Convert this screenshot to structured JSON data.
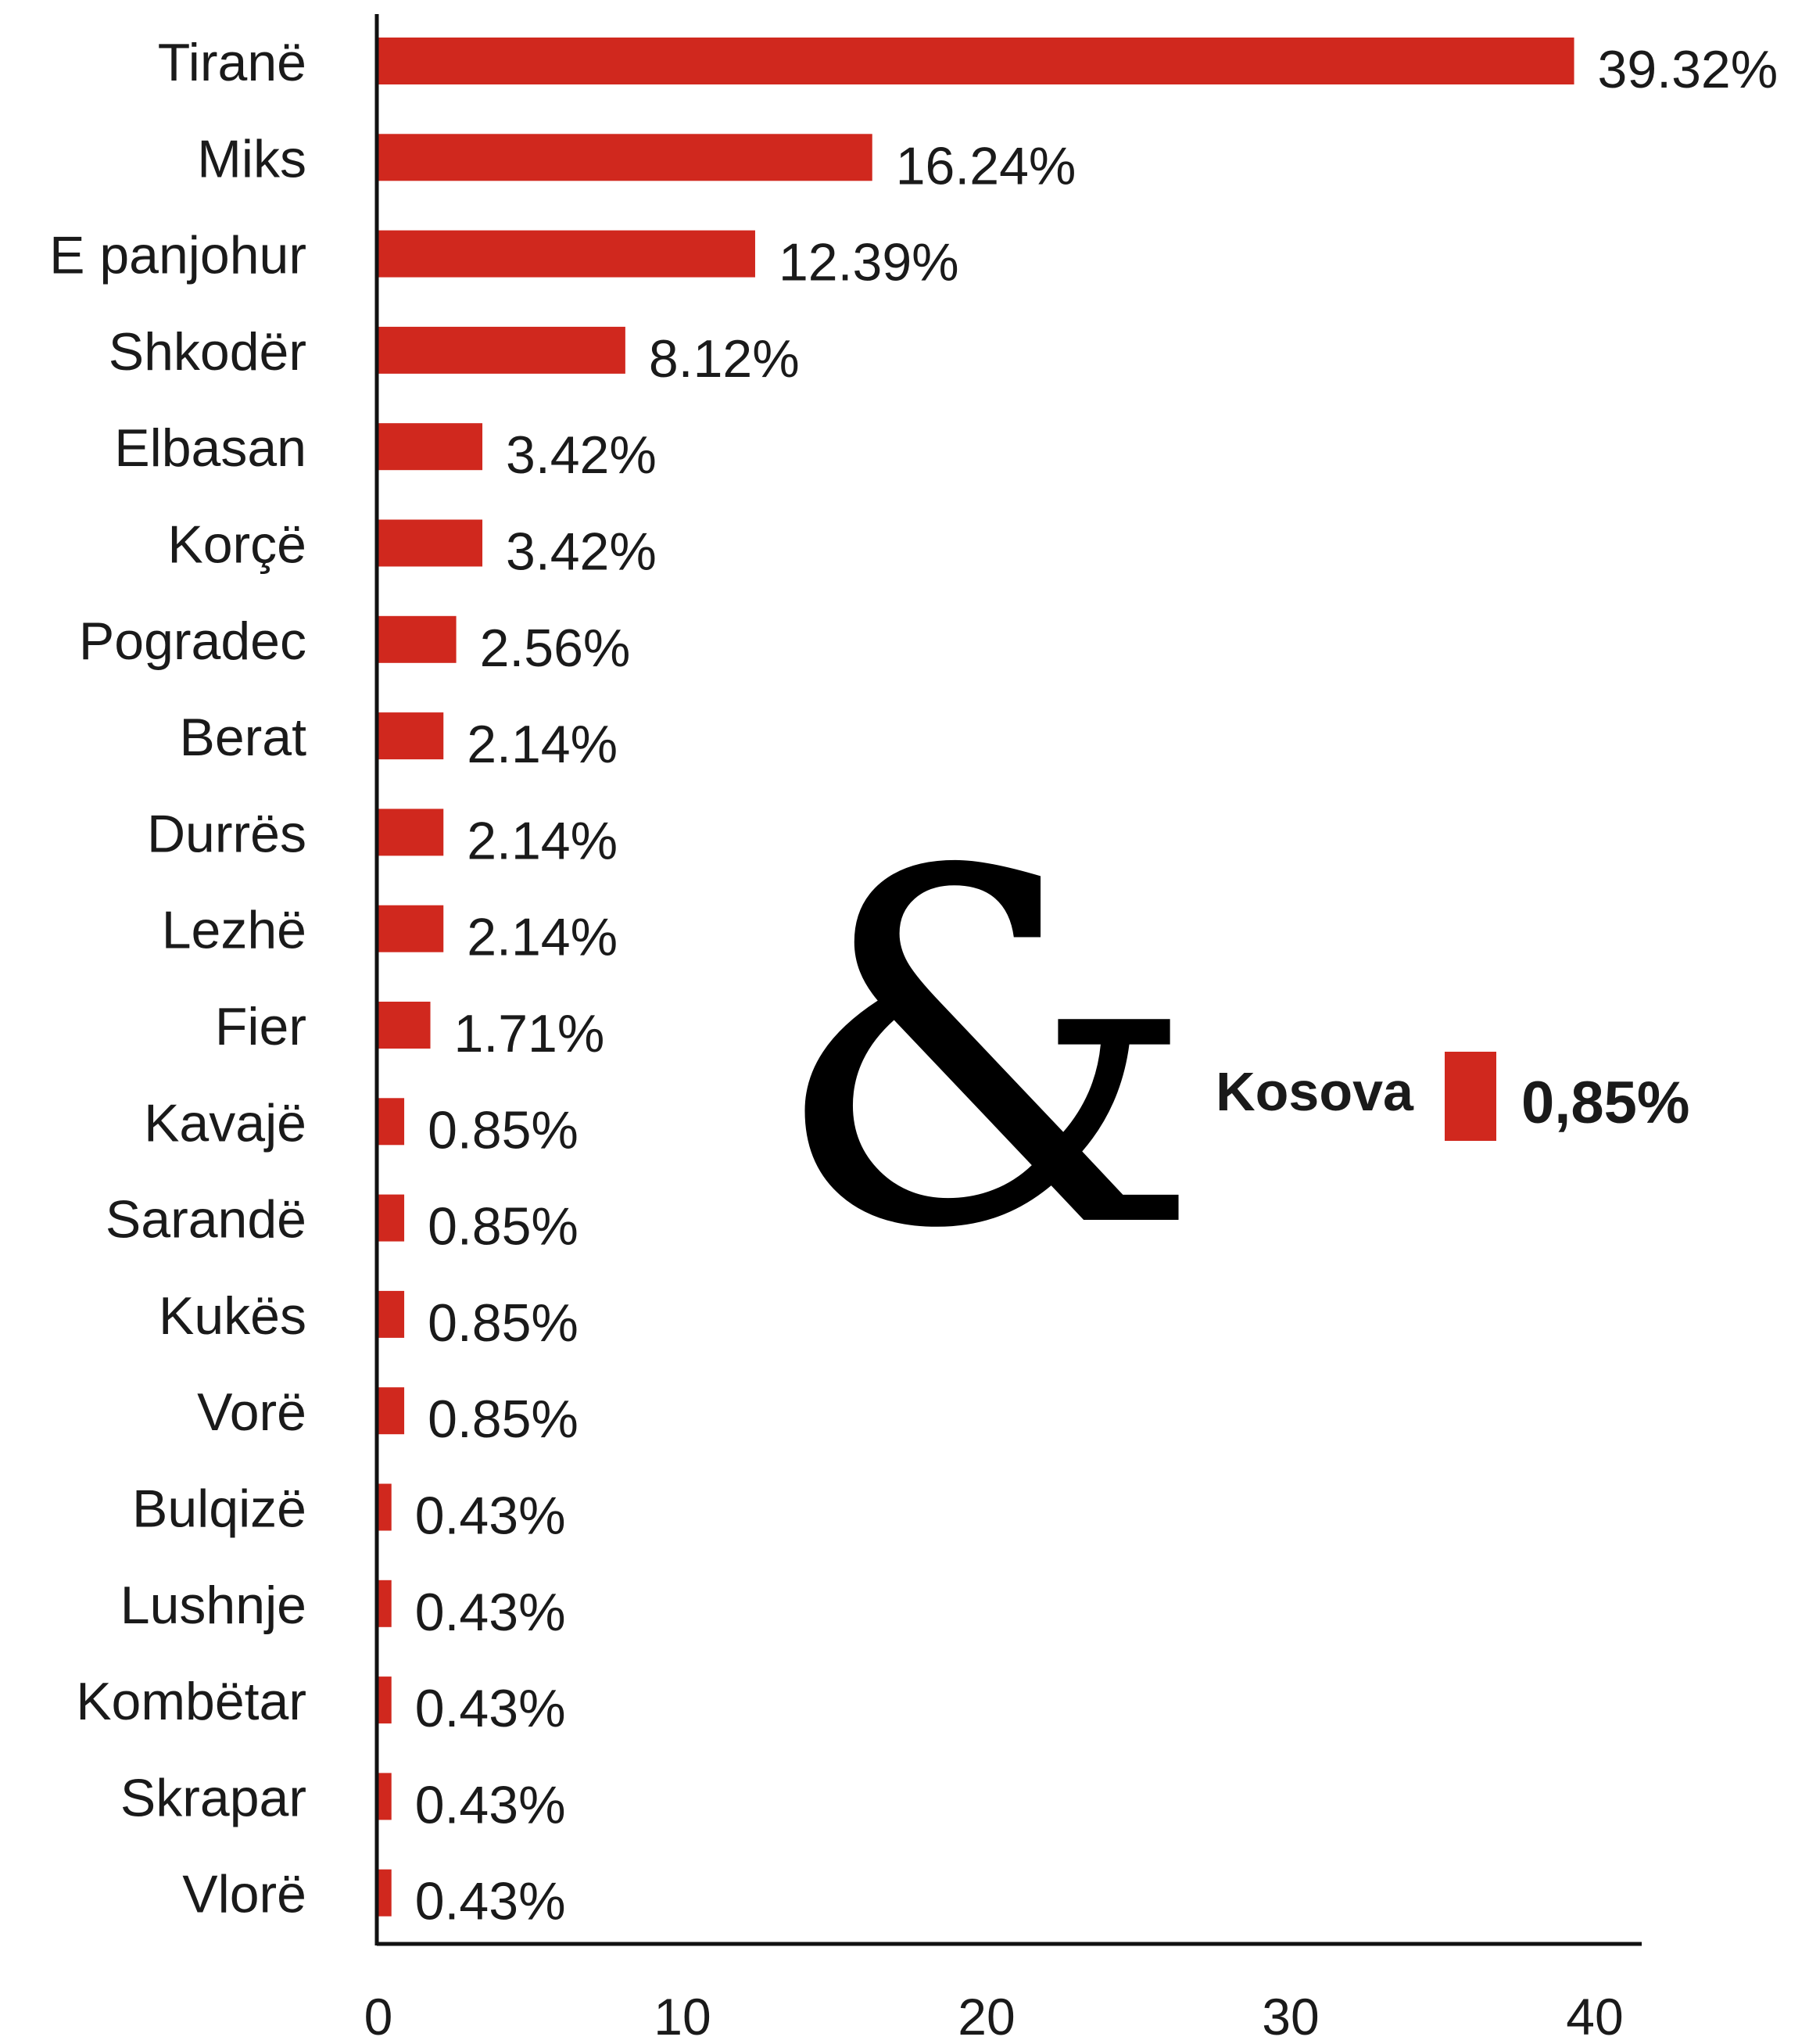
{
  "chart_data": {
    "type": "bar",
    "orientation": "horizontal",
    "categories": [
      "Tiranë",
      "Miks",
      "E panjohur",
      "Shkodër",
      "Elbasan",
      "Korçë",
      "Pogradec",
      "Berat",
      "Durrës",
      "Lezhë",
      "Fier",
      "Kavajë",
      "Sarandë",
      "Kukës",
      "Vorë",
      "Bulqizë",
      "Lushnje",
      "Kombëtar",
      "Skrapar",
      "Vlorë"
    ],
    "values": [
      39.32,
      16.24,
      12.39,
      8.12,
      3.42,
      3.42,
      2.56,
      2.14,
      2.14,
      2.14,
      1.71,
      0.85,
      0.85,
      0.85,
      0.85,
      0.43,
      0.43,
      0.43,
      0.43,
      0.43
    ],
    "value_labels": [
      "39.32%",
      "16.24%",
      "12.39%",
      "8.12%",
      "3.42%",
      "3.42%",
      "2.56%",
      "2.14%",
      "2.14%",
      "2.14%",
      "1.71%",
      "0.85%",
      "0.85%",
      "0.85%",
      "0.85%",
      "0.43%",
      "0.43%",
      "0.43%",
      "0.43%",
      "0.43%"
    ],
    "xlim": [
      0,
      40
    ],
    "xticks": [
      0,
      10,
      20,
      30,
      40
    ],
    "grid": false,
    "bar_color": "#d0281e",
    "annotation": {
      "symbol": "&",
      "label": "Kosova",
      "value": 0.85,
      "value_label": "0,85%"
    }
  }
}
